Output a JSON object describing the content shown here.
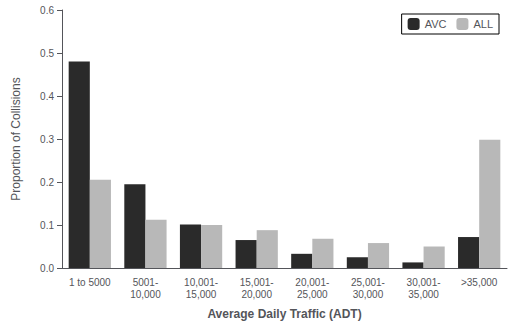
{
  "chart_data": {
    "type": "bar",
    "categories": [
      "1 to 5000",
      "5001-\n10,000",
      "10,001-\n15,000",
      "15,001-\n20,000",
      "20,001-\n25,000",
      "25,001-\n30,000",
      "30,001-\n35,000",
      ">35,000"
    ],
    "series": [
      {
        "name": "AVC",
        "color": "#2a2a2a",
        "values": [
          0.48,
          0.195,
          0.101,
          0.065,
          0.033,
          0.025,
          0.013,
          0.072
        ]
      },
      {
        "name": "ALL",
        "color": "#b8b8b8",
        "values": [
          0.205,
          0.112,
          0.1,
          0.088,
          0.068,
          0.058,
          0.05,
          0.298
        ]
      }
    ],
    "xlabel": "Average Daily Traffic (ADT)",
    "ylabel": "Proportion of Collisions",
    "ylim": [
      0,
      0.6
    ],
    "yticks": [
      {
        "value": 0,
        "label": "0.0"
      },
      0.1,
      0.2,
      0.3,
      0.4,
      0.5,
      0.6
    ],
    "grid": false,
    "legend": "upper right"
  }
}
